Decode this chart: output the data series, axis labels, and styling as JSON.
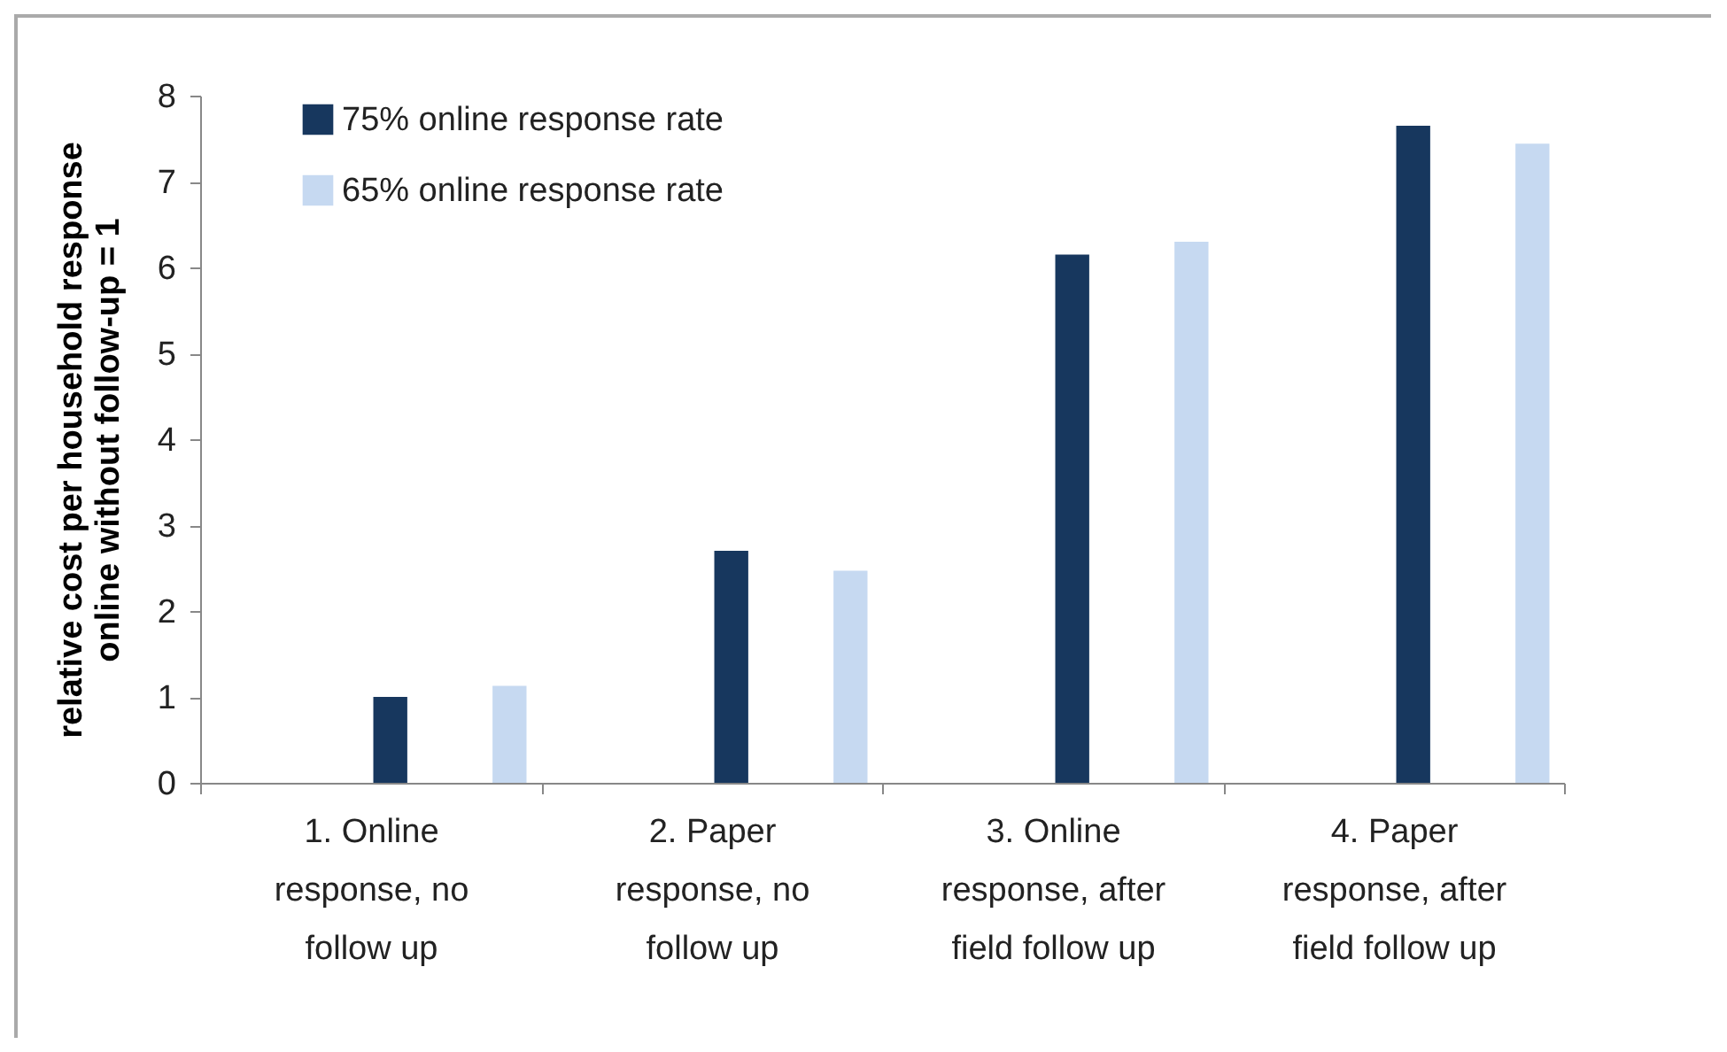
{
  "chart_data": {
    "type": "bar",
    "ylabel": "relative cost per household response online without follow-up = 1",
    "categories": [
      "1. Online response, no follow up",
      "2. Paper response, no follow up",
      "3. Online response, after field follow up",
      "4. Paper response, after field follow up"
    ],
    "series": [
      {
        "name": "75% online response rate",
        "color": "#17375e",
        "values": [
          1.0,
          2.7,
          6.15,
          7.65
        ]
      },
      {
        "name": "65% online response rate",
        "color": "#c6d9f1",
        "values": [
          1.13,
          2.47,
          6.3,
          7.44
        ]
      }
    ],
    "ylim": [
      0,
      8
    ],
    "yticks": [
      0,
      1,
      2,
      3,
      4,
      5,
      6,
      7,
      8
    ],
    "grid": false,
    "legend": "top left"
  }
}
